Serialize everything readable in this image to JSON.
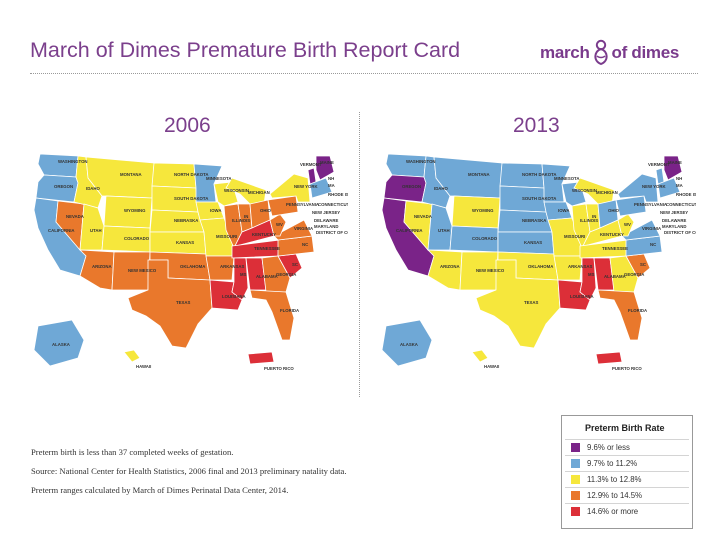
{
  "header": {
    "title": "March of Dimes Premature Birth Report Card",
    "logo_left": "march",
    "logo_right": "of dimes"
  },
  "maps": [
    {
      "year": "2006",
      "states": {
        "WA": "blue",
        "OR": "blue",
        "CA": "blue",
        "NV": "orange",
        "ID": "yellow",
        "MT": "yellow",
        "WY": "yellow",
        "UT": "yellow",
        "AZ": "orange",
        "CO": "yellow",
        "NM": "orange",
        "ND": "yellow",
        "SD": "yellow",
        "NE": "yellow",
        "KS": "yellow",
        "OK": "orange",
        "TX": "orange",
        "MN": "blue",
        "IA": "yellow",
        "MO": "yellow",
        "AR": "orange",
        "LA": "red",
        "WI": "yellow",
        "IL": "orange",
        "IN": "orange",
        "MI": "yellow",
        "OH": "orange",
        "KY": "red",
        "TN": "red",
        "MS": "red",
        "AL": "red",
        "GA": "orange",
        "FL": "orange",
        "SC": "red",
        "NC": "orange",
        "VA": "orange",
        "WV": "orange",
        "PA": "orange",
        "NY": "yellow",
        "ME": "purple",
        "VT": "purple",
        "NEW_ENGLAND": "blue",
        "AK": "blue",
        "HI": "yellow",
        "PR": "red"
      }
    },
    {
      "year": "2013",
      "states": {
        "WA": "blue",
        "OR": "purple",
        "CA": "purple",
        "NV": "yellow",
        "ID": "blue",
        "MT": "blue",
        "WY": "yellow",
        "UT": "blue",
        "AZ": "yellow",
        "CO": "blue",
        "NM": "yellow",
        "ND": "blue",
        "SD": "blue",
        "NE": "blue",
        "KS": "blue",
        "OK": "yellow",
        "TX": "yellow",
        "MN": "blue",
        "IA": "blue",
        "MO": "yellow",
        "AR": "yellow",
        "LA": "red",
        "WI": "blue",
        "IL": "yellow",
        "IN": "yellow",
        "MI": "yellow",
        "OH": "blue",
        "KY": "yellow",
        "TN": "yellow",
        "MS": "red",
        "AL": "red",
        "GA": "yellow",
        "FL": "orange",
        "SC": "orange",
        "NC": "blue",
        "VA": "blue",
        "WV": "yellow",
        "PA": "blue",
        "NY": "blue",
        "ME": "purple",
        "VT": "blue",
        "NEW_ENGLAND": "blue",
        "AK": "blue",
        "HI": "yellow",
        "PR": "red"
      }
    }
  ],
  "state_labels": {
    "WA": "WASHINGTON",
    "OR": "OREGON",
    "CA": "CALIFORNIA",
    "NV": "NEVADA",
    "ID": "IDAHO",
    "MT": "MONTANA",
    "WY": "WYOMING",
    "UT": "UTAH",
    "AZ": "ARIZONA",
    "CO": "COLORADO",
    "NM": "NEW MEXICO",
    "ND": "NORTH DAKOTA",
    "SD": "SOUTH DAKOTA",
    "NE": "NEBRASKA",
    "KS": "KANSAS",
    "OK": "OKLAHOMA",
    "TX": "TEXAS",
    "MN": "MINNESOTA",
    "IA": "IOWA",
    "MO": "MISSOURI",
    "AR": "ARKANSAS",
    "LA": "LOUISIANA",
    "WI": "WISCONSIN",
    "IL": "ILLINOIS",
    "IN": "IN",
    "MI": "MICHIGAN",
    "OH": "OHIO",
    "KY": "KENTUCKY",
    "TN": "TENNESSEE",
    "MS": "MS",
    "AL": "ALABAMA",
    "GA": "GEORGIA",
    "FL": "FLORIDA",
    "SC": "SC",
    "NC": "NC",
    "VA": "VIRGINIA",
    "WV": "WV",
    "PA": "PENNSYLVANIA",
    "NY": "NEW YORK",
    "ME": "MAINE",
    "VT": "VERMONT",
    "NH": "NH",
    "MA": "MA",
    "RI": "RHODE ISLAND",
    "CT": "CONNECTICUT",
    "NJ": "NEW JERSEY",
    "DE": "DELAWARE",
    "MD": "MARYLAND",
    "DC": "DISTRICT OF COLUMBIA",
    "AK": "ALASKA",
    "HI": "HAWAII",
    "PR": "PUERTO RICO"
  },
  "colors": {
    "purple": "#7a2388",
    "blue": "#6fa8d6",
    "yellow": "#f6e73c",
    "orange": "#e9782c",
    "red": "#dc2f38"
  },
  "legend": {
    "title": "Preterm Birth Rate",
    "items": [
      {
        "key": "purple",
        "label": "9.6% or less"
      },
      {
        "key": "blue",
        "label": "9.7% to 11.2%"
      },
      {
        "key": "yellow",
        "label": "11.3% to 12.8%"
      },
      {
        "key": "orange",
        "label": "12.9% to 14.5%"
      },
      {
        "key": "red",
        "label": "14.6% or more"
      }
    ]
  },
  "footnotes": [
    "Preterm birth is less than 37 completed weeks of gestation.",
    "Source: National Center for Health Statistics, 2006 final and 2013 preliminary natality data.",
    "Preterm ranges calculated by March of Dimes Perinatal Data Center, 2014."
  ]
}
